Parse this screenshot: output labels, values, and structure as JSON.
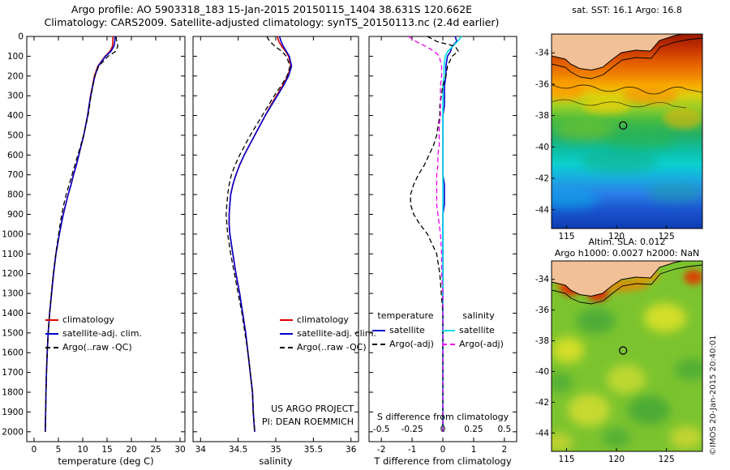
{
  "header": {
    "line1": "Argo profile: AO 5903318_183 15-Jan-2015 20150115_1404 38.631S 120.662E",
    "line2": "Climatology: CARS2009. Satellite-adjusted climatology: synTS_20150113.nc (2.4d earlier)"
  },
  "watermark": "©IMOS 20-Jan-2015 20:40:01",
  "colors": {
    "climatology": "#e00000",
    "satellite_adjusted": "#0000cc",
    "argo": "#000000",
    "satellite_salinity": "#00dde8",
    "argo_salinity": "#ee00ee",
    "land": "#f2c096"
  },
  "chart_data": [
    {
      "id": "temperature",
      "type": "line",
      "xlabel": "temperature (deg C)",
      "xlim": [
        -1.5,
        31
      ],
      "xticks": [
        0,
        5,
        10,
        15,
        20,
        25,
        30
      ],
      "ylim": [
        0,
        2050
      ],
      "yticks": [
        0,
        100,
        200,
        300,
        400,
        500,
        600,
        700,
        800,
        900,
        1000,
        1100,
        1200,
        1300,
        1400,
        1500,
        1600,
        1700,
        1800,
        1900,
        2000
      ],
      "depths": [
        0,
        25,
        50,
        75,
        100,
        150,
        200,
        250,
        300,
        350,
        400,
        450,
        500,
        550,
        600,
        650,
        700,
        750,
        800,
        850,
        900,
        950,
        1000,
        1100,
        1200,
        1300,
        1400,
        1500,
        1600,
        1700,
        1800,
        1900,
        2000
      ],
      "series": [
        {
          "name": "climatology",
          "color": "#e00000",
          "dash": false,
          "values": [
            16.2,
            16.2,
            16.1,
            15.6,
            14.6,
            13.1,
            12.4,
            12.0,
            11.6,
            11.3,
            11.0,
            10.6,
            10.2,
            9.7,
            9.2,
            8.7,
            8.1,
            7.6,
            7.0,
            6.5,
            6.0,
            5.6,
            5.2,
            4.5,
            4.0,
            3.6,
            3.2,
            2.9,
            2.7,
            2.55,
            2.45,
            2.38,
            2.3
          ]
        },
        {
          "name": "satellite-adj. clim.",
          "color": "#0000cc",
          "dash": false,
          "values": [
            16.6,
            16.6,
            16.4,
            15.8,
            14.7,
            13.2,
            12.5,
            12.05,
            11.65,
            11.3,
            11.0,
            10.6,
            10.2,
            9.7,
            9.2,
            8.7,
            8.1,
            7.6,
            7.0,
            6.5,
            6.0,
            5.6,
            5.2,
            4.5,
            4.0,
            3.6,
            3.2,
            2.9,
            2.7,
            2.55,
            2.45,
            2.38,
            2.3
          ]
        },
        {
          "name": "Argo(..raw -QC)",
          "color": "#000000",
          "dash": true,
          "values": [
            16.8,
            17.0,
            17.2,
            16.8,
            15.2,
            13.3,
            12.5,
            12.1,
            11.7,
            11.4,
            11.1,
            10.65,
            10.15,
            9.6,
            9.0,
            8.4,
            7.8,
            7.2,
            6.6,
            6.1,
            5.7,
            5.35,
            5.05,
            4.45,
            3.95,
            3.55,
            3.2,
            2.9,
            2.7,
            2.55,
            2.45,
            2.38,
            2.3
          ]
        }
      ]
    },
    {
      "id": "salinity",
      "type": "line",
      "xlabel": "salinity",
      "xlim": [
        33.9,
        36.1
      ],
      "xticks": [
        34,
        34.5,
        35,
        35.5,
        36
      ],
      "ylim": [
        0,
        2050
      ],
      "depths": [
        0,
        25,
        50,
        75,
        100,
        150,
        200,
        250,
        300,
        350,
        400,
        450,
        500,
        550,
        600,
        650,
        700,
        750,
        800,
        850,
        900,
        950,
        1000,
        1100,
        1200,
        1300,
        1400,
        1500,
        1600,
        1700,
        1800,
        1900,
        2000
      ],
      "series": [
        {
          "name": "climatology",
          "color": "#e00000",
          "dash": false,
          "values": [
            35.02,
            35.04,
            35.08,
            35.13,
            35.17,
            35.2,
            35.16,
            35.09,
            35.01,
            34.93,
            34.86,
            34.79,
            34.72,
            34.65,
            34.58,
            34.52,
            34.47,
            34.43,
            34.4,
            34.39,
            34.38,
            34.38,
            34.39,
            34.43,
            34.47,
            34.52,
            34.56,
            34.6,
            34.63,
            34.66,
            34.69,
            34.7,
            34.72
          ]
        },
        {
          "name": "satellite-adj. clim.",
          "color": "#0000cc",
          "dash": false,
          "values": [
            35.05,
            35.07,
            35.1,
            35.14,
            35.18,
            35.21,
            35.17,
            35.1,
            35.02,
            34.94,
            34.86,
            34.79,
            34.72,
            34.65,
            34.58,
            34.52,
            34.47,
            34.43,
            34.4,
            34.39,
            34.38,
            34.38,
            34.39,
            34.43,
            34.47,
            34.52,
            34.56,
            34.6,
            34.63,
            34.66,
            34.69,
            34.7,
            34.72
          ]
        },
        {
          "name": "Argo(..raw -QC)",
          "color": "#000000",
          "dash": true,
          "values": [
            34.88,
            34.92,
            34.99,
            35.08,
            35.14,
            35.19,
            35.15,
            35.07,
            34.98,
            34.9,
            34.82,
            34.74,
            34.66,
            34.59,
            34.52,
            34.46,
            34.41,
            34.38,
            34.36,
            34.35,
            34.34,
            34.35,
            34.36,
            34.4,
            34.45,
            34.5,
            34.55,
            34.59,
            34.63,
            34.66,
            34.69,
            34.7,
            34.72
          ]
        }
      ],
      "annotations": [
        "US ARGO PROJECT",
        "PI: DEAN ROEMMICH"
      ]
    },
    {
      "id": "difference",
      "type": "line",
      "xlabelT": "T difference from climatology",
      "xlabelS": "S difference from climatology",
      "xlimT": [
        -2.4,
        2.4
      ],
      "xticksT": [
        -2,
        -1,
        0,
        1,
        2
      ],
      "xlimS": [
        -0.6,
        0.6
      ],
      "xticksS": [
        -0.5,
        -0.25,
        0,
        0.25,
        0.5
      ],
      "ylim": [
        0,
        2050
      ],
      "depths": [
        0,
        25,
        50,
        75,
        100,
        150,
        200,
        250,
        300,
        350,
        400,
        450,
        500,
        550,
        600,
        650,
        700,
        750,
        800,
        850,
        900,
        950,
        1000,
        1100,
        1200,
        1300,
        1400,
        1500,
        1600,
        1700,
        1800,
        1900,
        2000
      ],
      "legend": {
        "temperature_header": "temperature",
        "salinity_header": "salinity"
      },
      "series": [
        {
          "name": "satellite",
          "group": "temperature",
          "scale": "T",
          "color": "#0000cc",
          "dash": false,
          "values": [
            0.4,
            0.45,
            0.3,
            0.25,
            0.15,
            0.1,
            0.1,
            0.05,
            0.05,
            0.05,
            0.0,
            0.0,
            0.0,
            0.0,
            0.0,
            0.0,
            0.0,
            0.05,
            0.05,
            0.05,
            0.0,
            0.0,
            0.0,
            0.0,
            0.0,
            0.0,
            0.0,
            0.0,
            0.0,
            0.0,
            0.0,
            0.0,
            0.0
          ]
        },
        {
          "name": "Argo(-adj)",
          "group": "temperature",
          "scale": "T",
          "color": "#000000",
          "dash": true,
          "values": [
            -0.5,
            -0.2,
            0.4,
            0.5,
            0.3,
            0.15,
            0.1,
            0.0,
            -0.05,
            -0.1,
            -0.1,
            -0.15,
            -0.2,
            -0.3,
            -0.45,
            -0.6,
            -0.8,
            -0.95,
            -1.05,
            -1.05,
            -0.95,
            -0.75,
            -0.5,
            -0.2,
            -0.1,
            -0.05,
            0.0,
            0.0,
            0.0,
            0.0,
            0.0,
            0.0,
            0.0
          ]
        },
        {
          "name": "satellite",
          "group": "salinity",
          "scale": "S",
          "color": "#00dde8",
          "dash": false,
          "values": [
            0.15,
            0.12,
            0.08,
            0.04,
            0.02,
            0.01,
            0.01,
            0.0,
            0.0,
            0.0,
            0.0,
            0.0,
            0.0,
            0.0,
            0.0,
            0.0,
            0.0,
            0.0,
            0.0,
            0.0,
            0.0,
            0.0,
            0.0,
            0.0,
            0.0,
            0.0,
            0.0,
            0.0,
            0.0,
            0.0,
            0.0,
            0.0,
            0.0
          ]
        },
        {
          "name": "Argo(-adj)",
          "group": "salinity",
          "scale": "S",
          "color": "#ee00ee",
          "dash": true,
          "values": [
            -0.28,
            -0.22,
            -0.14,
            -0.07,
            -0.03,
            -0.01,
            -0.01,
            -0.02,
            -0.02,
            -0.02,
            -0.02,
            -0.03,
            -0.03,
            -0.03,
            -0.04,
            -0.04,
            -0.05,
            -0.05,
            -0.05,
            -0.05,
            -0.04,
            -0.03,
            -0.02,
            -0.01,
            -0.01,
            0.0,
            0.0,
            0.0,
            0.0,
            0.0,
            0.0,
            0.0,
            0.0
          ]
        }
      ]
    }
  ],
  "maps": [
    {
      "id": "sst",
      "title": "sat. SST: 16.1  Argo: 16.8",
      "xticks": [
        115,
        120,
        125
      ],
      "yticks": [
        -34,
        -36,
        -38,
        -40,
        -42,
        -44
      ],
      "lonlim": [
        113.5,
        128.6
      ],
      "latlim": [
        -32.8,
        -45.2
      ],
      "marker": {
        "lon": 120.662,
        "lat": -38.631
      }
    },
    {
      "id": "sla",
      "title_line1": "Altim. SLA: 0.012",
      "title_line2": "Argo h1000: 0.0027  h2000: NaN",
      "xticks": [
        115,
        120,
        125
      ],
      "yticks": [
        -34,
        -36,
        -38,
        -40,
        -42,
        -44
      ],
      "lonlim": [
        113.5,
        128.6
      ],
      "latlim": [
        -32.8,
        -45.2
      ],
      "marker": {
        "lon": 120.662,
        "lat": -38.631
      }
    }
  ]
}
